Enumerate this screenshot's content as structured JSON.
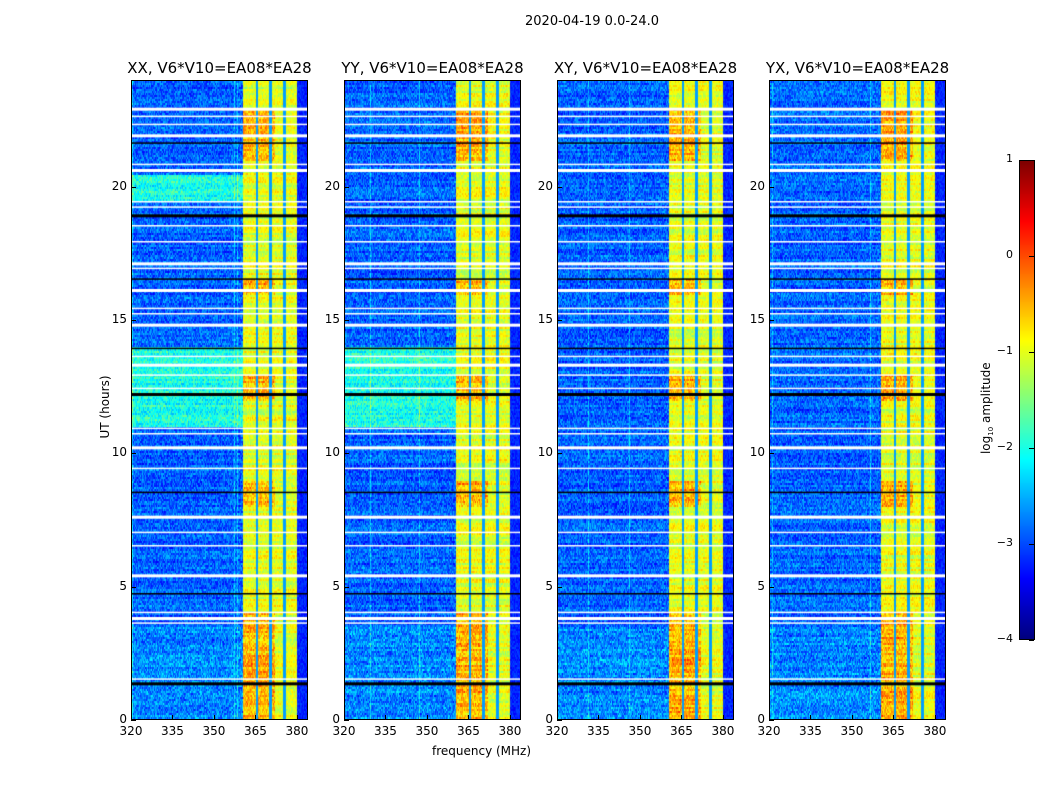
{
  "chart_data": {
    "type": "heatmap",
    "suptitle": "2020-04-19 0.0-24.0",
    "xlabel": "frequency (MHz)",
    "ylabel": "UT (hours)",
    "xlim": [
      320,
      384
    ],
    "ylim": [
      0,
      24
    ],
    "xticks": [
      "320",
      "335",
      "350",
      "365",
      "380"
    ],
    "yticks": [
      "0",
      "5",
      "10",
      "15",
      "20"
    ],
    "panels": [
      {
        "title": "XX, V6*V10=EA08*EA28",
        "elevated_background_hours": [
          [
            11,
            14
          ],
          [
            19.5,
            20.5
          ]
        ]
      },
      {
        "title": "YY, V6*V10=EA08*EA28",
        "elevated_background_hours": [
          [
            11,
            14
          ]
        ]
      },
      {
        "title": "XY, V6*V10=EA08*EA28",
        "elevated_background_hours": []
      },
      {
        "title": "YX, V6*V10=EA08*EA28",
        "elevated_background_hours": []
      }
    ],
    "bright_band_mhz": [
      360.5,
      380
    ],
    "band_gaps_mhz": [
      365.5,
      370.5,
      375.5
    ],
    "strong_rfi_hours": [
      [
        0,
        4
      ],
      [
        8,
        9
      ],
      [
        12,
        13
      ],
      [
        16,
        16.6
      ],
      [
        21,
        23
      ]
    ],
    "flagged_hours": [
      1.45,
      1.6,
      3.7,
      3.9,
      4.1,
      4.8,
      5.5,
      6.6,
      7.1,
      7.7,
      8.6,
      9.5,
      10.3,
      10.8,
      11.0,
      12.3,
      12.5,
      13.0,
      13.4,
      13.7,
      14.0,
      14.9,
      15.3,
      15.5,
      16.2,
      16.6,
      17.0,
      17.2,
      18.0,
      18.6,
      19.0,
      19.3,
      19.5,
      20.7,
      20.9,
      21.7,
      22.0,
      22.4,
      22.7,
      23.0
    ],
    "colorbar": {
      "label": "log10 amplitude",
      "label_main": "log",
      "label_sub": "10",
      "label_rest": " amplitude",
      "range": [
        -4,
        1
      ],
      "ticks": [
        "1",
        "0",
        "−1",
        "−2",
        "−3",
        "−4"
      ],
      "colormap": "jet"
    }
  }
}
